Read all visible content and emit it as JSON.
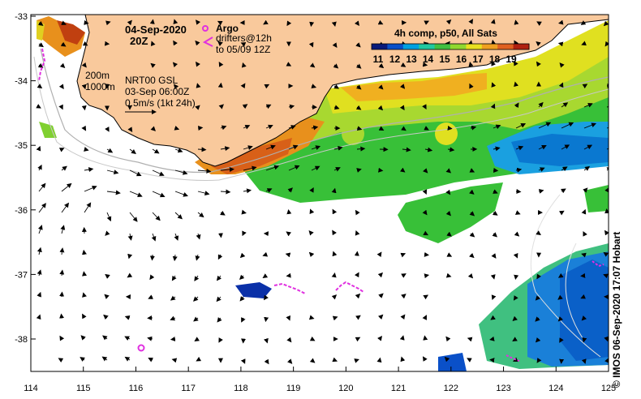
{
  "map": {
    "date_line1": "04-Sep-2020",
    "date_line2": "20Z",
    "argo_label": "Argo",
    "drifters_line1": "drifters@12h",
    "drifters_line2": "to 05/09 12Z",
    "contour_200": "200m",
    "contour_1000": "1000m",
    "currents_line1": "NRT00 GSL",
    "currents_line2": "03-Sep 06:00Z",
    "currents_line3": "0.5m/s (1kt 24h)",
    "composite_title": "4h comp, p50, All Sats",
    "colorbar_ticks": [
      "11",
      "12",
      "13",
      "14",
      "15",
      "16",
      "17",
      "18",
      "19"
    ],
    "colorbar_colors": [
      "#0a1a7a",
      "#0a50c8",
      "#00a0e0",
      "#20c8a0",
      "#40c040",
      "#90d830",
      "#e8e020",
      "#f0a020",
      "#e06020",
      "#b02010"
    ],
    "x_ticks": [
      "114",
      "115",
      "116",
      "117",
      "118",
      "119",
      "120",
      "121",
      "122",
      "123",
      "124",
      "125"
    ],
    "y_ticks": [
      "-33",
      "-34",
      "-35",
      "-36",
      "-37",
      "-38"
    ],
    "credit": "© IMOS 06-Sep-2020 17:07 Hobart",
    "land_color": "#f9c99c",
    "argo_color": "#e030e0"
  }
}
